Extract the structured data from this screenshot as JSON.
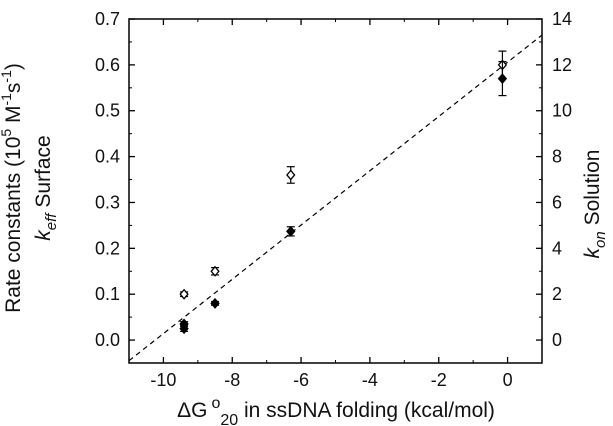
{
  "chart_data": {
    "type": "scatter",
    "xlabel": {
      "delta": "ΔG",
      "degree": "o",
      "sub": "20",
      "rest": " in ssDNA folding (kcal/mol)"
    },
    "ylabel_left": {
      "prefix": "Rate constants (10",
      "exp1": "5",
      "mid": " M",
      "exp2": "-1",
      "s": "s",
      "exp3": "-1",
      "suffix": ")",
      "k": "k",
      "ksub": "eff",
      "after": " Surface"
    },
    "ylabel_right": {
      "k": "k",
      "ksub": "on",
      "after": " Solution"
    },
    "xlim": [
      -11,
      1
    ],
    "ylim_left": [
      -0.05,
      0.7
    ],
    "ylim_right": [
      -1,
      14
    ],
    "x_ticks": [
      -10,
      -8,
      -6,
      -4,
      -2,
      0
    ],
    "x_tick_labels": [
      "-10",
      "-8",
      "-6",
      "-4",
      "-2",
      "0"
    ],
    "y_left_ticks": [
      0.0,
      0.1,
      0.2,
      0.3,
      0.4,
      0.5,
      0.6,
      0.7
    ],
    "y_left_tick_labels": [
      "0.0",
      "0.1",
      "0.2",
      "0.3",
      "0.4",
      "0.5",
      "0.6",
      "0.7"
    ],
    "y_right_ticks": [
      0,
      2,
      4,
      6,
      8,
      10,
      12,
      14
    ],
    "y_right_tick_labels": [
      "0",
      "2",
      "4",
      "6",
      "8",
      "10",
      "12",
      "14"
    ],
    "series": [
      {
        "marker": "open-diamond",
        "axis": "left",
        "points": [
          {
            "x": -9.4,
            "y": 0.1,
            "err": 0.005
          },
          {
            "x": -8.5,
            "y": 0.15,
            "err": 0.008
          },
          {
            "x": -6.3,
            "y": 0.36,
            "err": 0.018
          },
          {
            "x": -0.15,
            "y": 0.6,
            "err": 0.03
          }
        ]
      },
      {
        "marker": "filled-diamond",
        "axis": "left",
        "points": [
          {
            "x": -9.4,
            "y": 0.025,
            "err": 0.006
          },
          {
            "x": -9.4,
            "y": 0.035,
            "err": 0.005
          },
          {
            "x": -8.5,
            "y": 0.08,
            "err": 0.004
          },
          {
            "x": -6.3,
            "y": 0.237,
            "err": 0.01
          },
          {
            "x": -0.15,
            "y": 0.57,
            "err": 0.037
          }
        ]
      }
    ],
    "fit_line": {
      "style": "dashed",
      "axis": "left",
      "x1": -11,
      "y1": -0.045,
      "x2": 1,
      "y2": 0.665
    },
    "grid": false,
    "legend": "none"
  }
}
